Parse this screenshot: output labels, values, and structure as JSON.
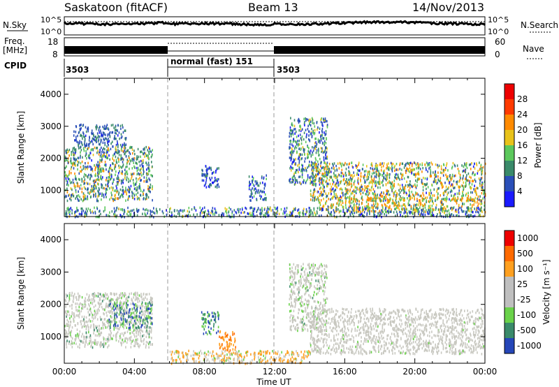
{
  "header": {
    "radar_title": "Saskatoon (fitACF)",
    "beam_label": "Beam 13",
    "date_label": "14/Nov/2013"
  },
  "noise_panel": {
    "left_label": "N.Sky",
    "right_label": "N.Search",
    "right_tick_top": "10^5",
    "right_tick_bottom": "10^0",
    "left_tick_top": "10^5",
    "left_tick_bottom": "10^0"
  },
  "freq_panel": {
    "left_label_line1": "Freq.",
    "left_label_line2": "[MHz]",
    "left_tick_top": "18",
    "left_tick_bottom": "8",
    "right_tick_top": "60",
    "right_tick_bottom": "0",
    "right_label": "Nave"
  },
  "cpid_panel": {
    "label": "CPID",
    "segments": [
      {
        "start_hour": 0,
        "text": "3503"
      },
      {
        "start_hour": 6,
        "text": "normal (fast) 151"
      },
      {
        "start_hour": 12,
        "text": "3503"
      }
    ]
  },
  "axes": {
    "x_ticks": [
      "00:00",
      "04:00",
      "08:00",
      "12:00",
      "16:00",
      "20:00",
      "00:00"
    ],
    "x_label": "Time UT",
    "ylabel_power": "Slant Range [km]",
    "ylabel_velocity": "Slant Range [km]",
    "y_ticks": [
      "1000",
      "2000",
      "3000",
      "4000"
    ]
  },
  "power_colorbar": {
    "label": "Power [dB]",
    "ticks": [
      "4",
      "8",
      "12",
      "16",
      "20",
      "24",
      "28"
    ],
    "colors": [
      "#1a1aff",
      "#2a4fb8",
      "#3a8a6a",
      "#5cc85c",
      "#e8c21a",
      "#ff8a00",
      "#ff3a00",
      "#ee0000"
    ]
  },
  "velocity_colorbar": {
    "label": "Velocity [m s⁻¹]",
    "ticks": [
      "1000",
      "500",
      "100",
      "25",
      "-25",
      "-100",
      "-500",
      "-1000"
    ],
    "colors": [
      "#2546b8",
      "#3a8a6a",
      "#6ad24a",
      "#bfbfbf",
      "#bfbfbf",
      "#ffa020",
      "#ff6a00",
      "#ee0000"
    ]
  },
  "chart_data": [
    {
      "type": "line",
      "name": "noise",
      "x_range_hours": [
        0,
        24
      ],
      "lines": [
        {
          "name": "N.Sky",
          "style": "solid",
          "level": 0.75
        },
        {
          "name": "N.Search",
          "style": "dotted",
          "level": 0.85
        }
      ]
    },
    {
      "type": "heatmap",
      "name": "power",
      "x_range_hours": [
        0,
        24
      ],
      "y_range_km": [
        180,
        4500
      ],
      "ylabel": "Slant Range [km]",
      "colorbar": "Power [dB]",
      "scatter_regions": [
        {
          "t": [
            0.0,
            5.0
          ],
          "r": [
            700,
            2400
          ],
          "color_weights": [
            0.05,
            0.2,
            0.35,
            0.2,
            0.1,
            0.1
          ]
        },
        {
          "t": [
            0.5,
            3.5
          ],
          "r": [
            2400,
            3100
          ],
          "color_weights": [
            0.1,
            0.6,
            0.3
          ]
        },
        {
          "t": [
            7.8,
            8.8
          ],
          "r": [
            1100,
            1800
          ],
          "color_weights": [
            0.2,
            0.5,
            0.3
          ]
        },
        {
          "t": [
            10.5,
            11.5
          ],
          "r": [
            700,
            1500
          ],
          "color_weights": [
            0.2,
            0.4,
            0.3,
            0.1
          ]
        },
        {
          "t": [
            12.8,
            15.0
          ],
          "r": [
            1200,
            3300
          ],
          "color_weights": [
            0.1,
            0.3,
            0.3,
            0.2,
            0.1
          ]
        },
        {
          "t": [
            14.0,
            24.0
          ],
          "r": [
            700,
            1900
          ],
          "color_weights": [
            0.05,
            0.15,
            0.2,
            0.2,
            0.2,
            0.2
          ]
        },
        {
          "t": [
            14.5,
            24.0
          ],
          "r": [
            350,
            800
          ],
          "color_weights": [
            0.0,
            0.05,
            0.1,
            0.2,
            0.3,
            0.35
          ]
        },
        {
          "t": [
            0.0,
            24.0
          ],
          "r": [
            200,
            500
          ],
          "color_weights": [
            0.1,
            0.3,
            0.3,
            0.2,
            0.1
          ]
        }
      ]
    },
    {
      "type": "heatmap",
      "name": "velocity",
      "x_range_hours": [
        0,
        24
      ],
      "y_range_km": [
        180,
        4500
      ],
      "ylabel": "Slant Range [km]",
      "colorbar": "Velocity [m s⁻¹]",
      "scatter_regions": [
        {
          "t": [
            0.0,
            5.0
          ],
          "r": [
            700,
            2400
          ],
          "color_weights": [
            0.0,
            0.05,
            0.1,
            0.8,
            0.05
          ]
        },
        {
          "t": [
            2.5,
            5.0
          ],
          "r": [
            1300,
            2100
          ],
          "color_weights": [
            0.3,
            0.3,
            0.3,
            0.1
          ]
        },
        {
          "t": [
            7.8,
            8.8
          ],
          "r": [
            1100,
            1800
          ],
          "color_weights": [
            0.4,
            0.3,
            0.3
          ]
        },
        {
          "t": [
            8.8,
            9.8
          ],
          "r": [
            600,
            1200
          ],
          "color_weights": [
            0.0,
            0.0,
            0.0,
            0.0,
            0.0,
            0.6,
            0.4
          ]
        },
        {
          "t": [
            12.8,
            15.0
          ],
          "r": [
            1200,
            3300
          ],
          "color_weights": [
            0.0,
            0.05,
            0.15,
            0.8
          ]
        },
        {
          "t": [
            14.0,
            24.0
          ],
          "r": [
            500,
            1900
          ],
          "color_weights": [
            0.0,
            0.0,
            0.02,
            0.96,
            0.02
          ]
        },
        {
          "t": [
            6.0,
            14.0
          ],
          "r": [
            200,
            600
          ],
          "color_weights": [
            0.0,
            0.0,
            0.1,
            0.2,
            0.2,
            0.5
          ]
        }
      ]
    }
  ]
}
